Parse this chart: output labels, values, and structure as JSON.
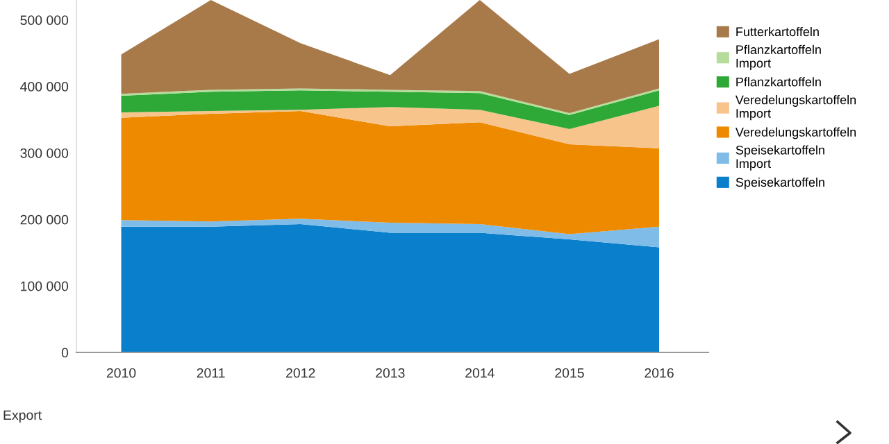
{
  "chart_data": {
    "type": "area",
    "stacked": true,
    "x": [
      2010,
      2011,
      2012,
      2013,
      2014,
      2015,
      2016
    ],
    "xlim": [
      2009.5,
      2016.55
    ],
    "xticks": [
      2010,
      2011,
      2012,
      2013,
      2014,
      2015,
      2016
    ],
    "ylim": [
      0,
      530000
    ],
    "yticks": [
      {
        "value": 0,
        "label": "0"
      },
      {
        "value": 100000,
        "label": "100 000"
      },
      {
        "value": 200000,
        "label": "200 000"
      },
      {
        "value": 300000,
        "label": "300 000"
      },
      {
        "value": 400000,
        "label": "400 000"
      },
      {
        "value": 500000,
        "label": "500 000"
      }
    ],
    "grid": false,
    "legend": "right",
    "series": [
      {
        "name": "Speisekartoffeln",
        "color": "#0a7fcc",
        "values": [
          189000,
          189000,
          193000,
          180000,
          180000,
          170000,
          158000
        ]
      },
      {
        "name": "Speisekartoffeln\nImport",
        "color": "#7fbce8",
        "values": [
          10000,
          8000,
          8000,
          15000,
          13000,
          8000,
          31000
        ]
      },
      {
        "name": "Veredelungskartoffeln",
        "color": "#ee8a00",
        "values": [
          154000,
          162000,
          162000,
          145000,
          153000,
          135000,
          118000
        ]
      },
      {
        "name": "Veredelungskartoffeln\nImport",
        "color": "#f7c48c",
        "values": [
          8000,
          4000,
          2000,
          29000,
          19000,
          23000,
          64000
        ]
      },
      {
        "name": "Pflanzkartoffeln",
        "color": "#2ea836",
        "values": [
          25000,
          29000,
          29000,
          23000,
          25000,
          21000,
          23000
        ]
      },
      {
        "name": "Pflanzkartoffeln\nImport",
        "color": "#b5dc9a",
        "values": [
          3000,
          3000,
          3000,
          3000,
          3000,
          3000,
          3000
        ]
      },
      {
        "name": "Futterkartoffeln",
        "color": "#a87a4a",
        "values": [
          59000,
          135000,
          68000,
          22000,
          137000,
          59000,
          74000
        ]
      }
    ],
    "annotations": [
      "Export"
    ]
  }
}
